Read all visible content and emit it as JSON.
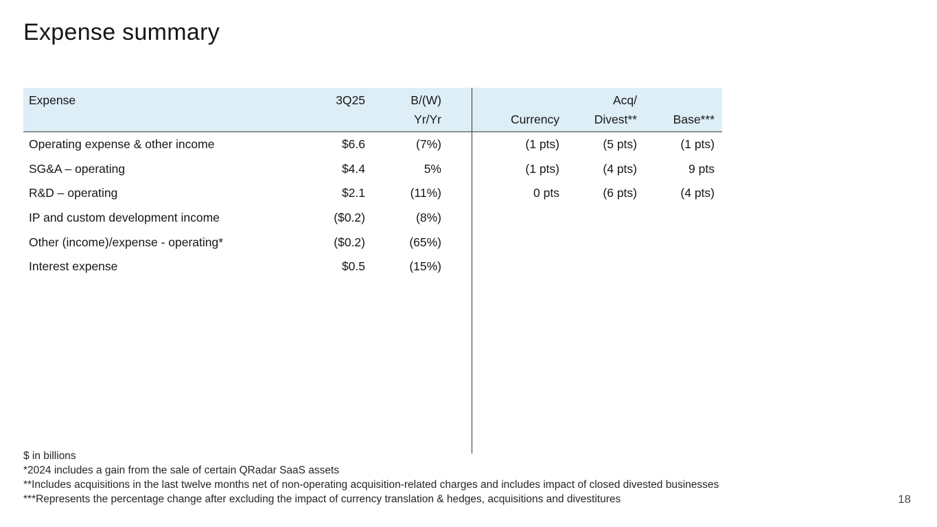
{
  "slide": {
    "title": "Expense summary",
    "page_number": "18"
  },
  "table": {
    "header": {
      "expense": "Expense",
      "quarter": "3Q25",
      "bw": "B/(W)",
      "yryr": "Yr/Yr",
      "currency": "Currency",
      "acq": "Acq/",
      "divest": "Divest**",
      "base": "Base***"
    },
    "rows": [
      {
        "name": "Operating expense & other income",
        "quarter": "$6.6",
        "yryr": "(7%)",
        "currency": "(1 pts)",
        "acq_divest": "(5 pts)",
        "base": "(1 pts)"
      },
      {
        "name": "SG&A – operating",
        "quarter": "$4.4",
        "yryr": "5%",
        "currency": "(1 pts)",
        "acq_divest": "(4 pts)",
        "base": "9 pts"
      },
      {
        "name": "R&D – operating",
        "quarter": "$2.1",
        "yryr": "(11%)",
        "currency": "0 pts",
        "acq_divest": "(6 pts)",
        "base": "(4 pts)"
      },
      {
        "name": "IP and custom development income",
        "quarter": "($0.2)",
        "yryr": "(8%)",
        "currency": "",
        "acq_divest": "",
        "base": ""
      },
      {
        "name": "Other (income)/expense - operating*",
        "quarter": "($0.2)",
        "yryr": "(65%)",
        "currency": "",
        "acq_divest": "",
        "base": ""
      },
      {
        "name": "Interest expense",
        "quarter": "$0.5",
        "yryr": "(15%)",
        "currency": "",
        "acq_divest": "",
        "base": ""
      }
    ]
  },
  "footnotes": [
    "$ in billions",
    "*2024 includes a gain from the sale of certain QRadar SaaS assets",
    "**Includes acquisitions in the last twelve months net of non-operating acquisition-related charges and includes impact of closed divested businesses",
    "***Represents the percentage change after excluding the impact of currency translation & hedges, acquisitions and divestitures"
  ],
  "colors": {
    "header_bg": "#ddeef7",
    "text": "#161616",
    "header_rule": "#8f8f8f",
    "divider_line": "#333333",
    "footnote_text": "#252525",
    "page_number": "#4a4a4a"
  }
}
